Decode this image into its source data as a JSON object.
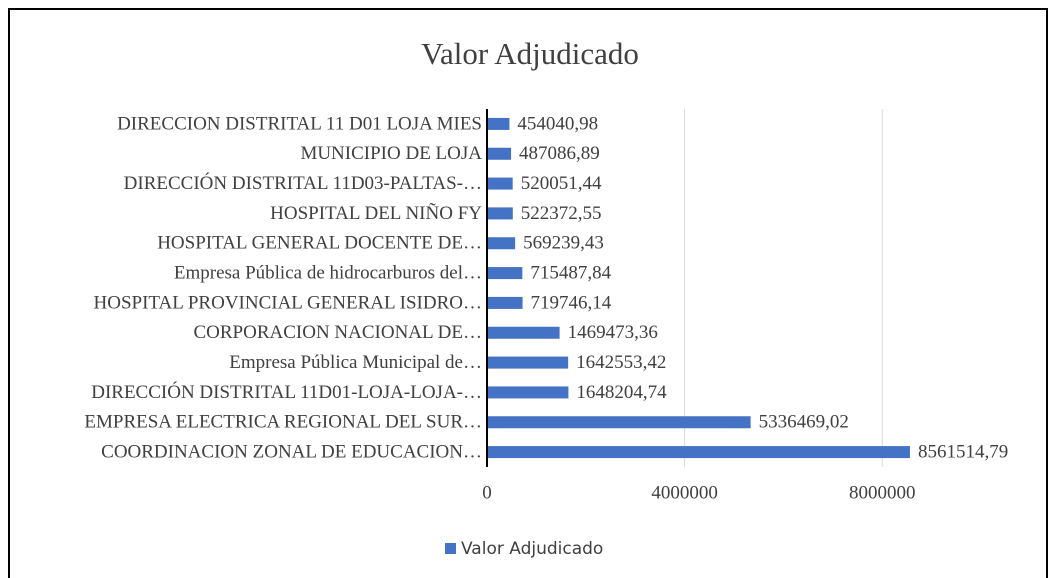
{
  "chart_data": {
    "type": "bar",
    "orientation": "horizontal",
    "title": "Valor Adjudicado",
    "categories": [
      "DIRECCION DISTRITAL 11 D01 LOJA MIES",
      "MUNICIPIO DE LOJA",
      "DIRECCIÓN DISTRITAL 11D03-PALTAS-…",
      "HOSPITAL DEL NIÑO FY",
      "HOSPITAL GENERAL DOCENTE DE…",
      "Empresa Pública de hidrocarburos del…",
      "HOSPITAL PROVINCIAL GENERAL ISIDRO…",
      "CORPORACION NACIONAL DE…",
      "Empresa Pública Municipal de…",
      "DIRECCIÓN DISTRITAL 11D01-LOJA-LOJA-…",
      "EMPRESA ELECTRICA REGIONAL DEL SUR…",
      "COORDINACION ZONAL DE EDUCACION…"
    ],
    "series": [
      {
        "name": "Valor Adjudicado",
        "color": "#4472c4",
        "values": [
          454040.98,
          487086.89,
          520051.44,
          522372.55,
          569239.43,
          715487.84,
          719746.14,
          1469473.36,
          1642553.42,
          1648204.74,
          5336469.02,
          8561514.79
        ],
        "value_labels": [
          "454040,98",
          "487086,89",
          "520051,44",
          "522372,55",
          "569239,43",
          "715487,84",
          "719746,14",
          "1469473,36",
          "1642553,42",
          "1648204,74",
          "5336469,02",
          "8561514,79"
        ]
      }
    ],
    "xlim": [
      0,
      10000000
    ],
    "xticks": [
      0,
      4000000,
      8000000
    ],
    "grid": true,
    "legend": "bottom"
  }
}
